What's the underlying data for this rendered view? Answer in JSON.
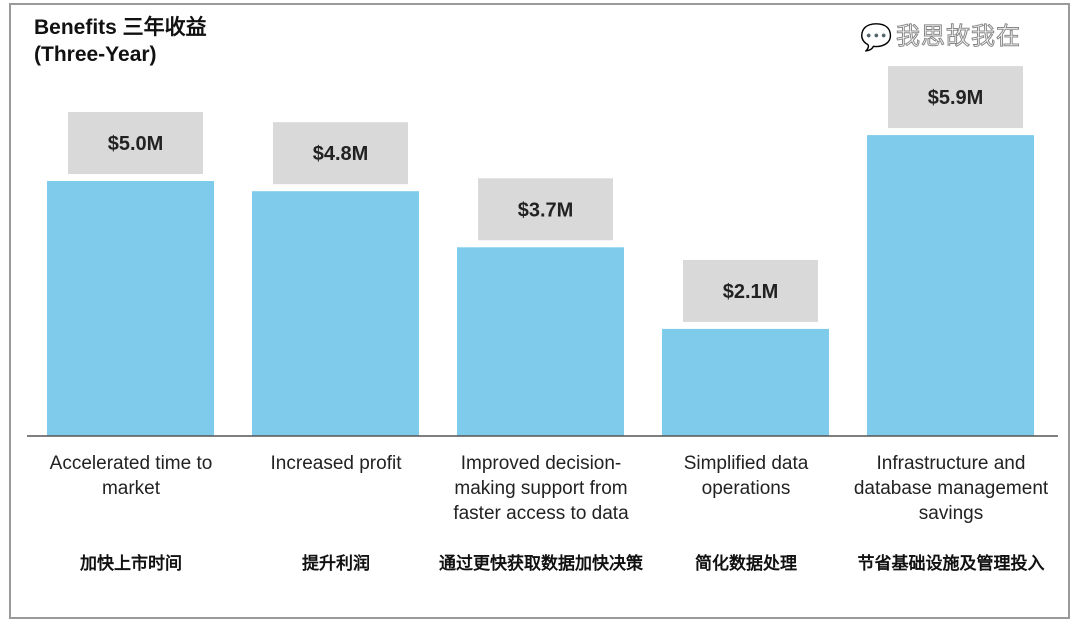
{
  "chart_data": {
    "type": "bar",
    "title": "Benefits  三年收益",
    "subtitle": "(Three-Year)",
    "categories": [
      "Accelerated time to market",
      "Increased profit",
      "Improved decision-making support from faster access to data",
      "Simplified data operations",
      "Infrastructure and database management savings"
    ],
    "categories_cn": [
      "加快上市时间",
      "提升利润",
      "通过更快获取数据加快决策",
      "简化数据处理",
      "节省基础设施及管理投入"
    ],
    "values": [
      5.0,
      4.8,
      3.7,
      2.1,
      5.9
    ],
    "data_labels": [
      "$5.0M",
      "$4.8M",
      "$3.7M",
      "$2.1M",
      "$5.9M"
    ],
    "unit": "$M",
    "ylim": [
      0,
      7
    ],
    "grid": false,
    "xlabel": "",
    "ylabel": "",
    "bar_color": "#7fcbec",
    "label_box_color": "#d9d9d9"
  },
  "watermark": "我思故我在"
}
